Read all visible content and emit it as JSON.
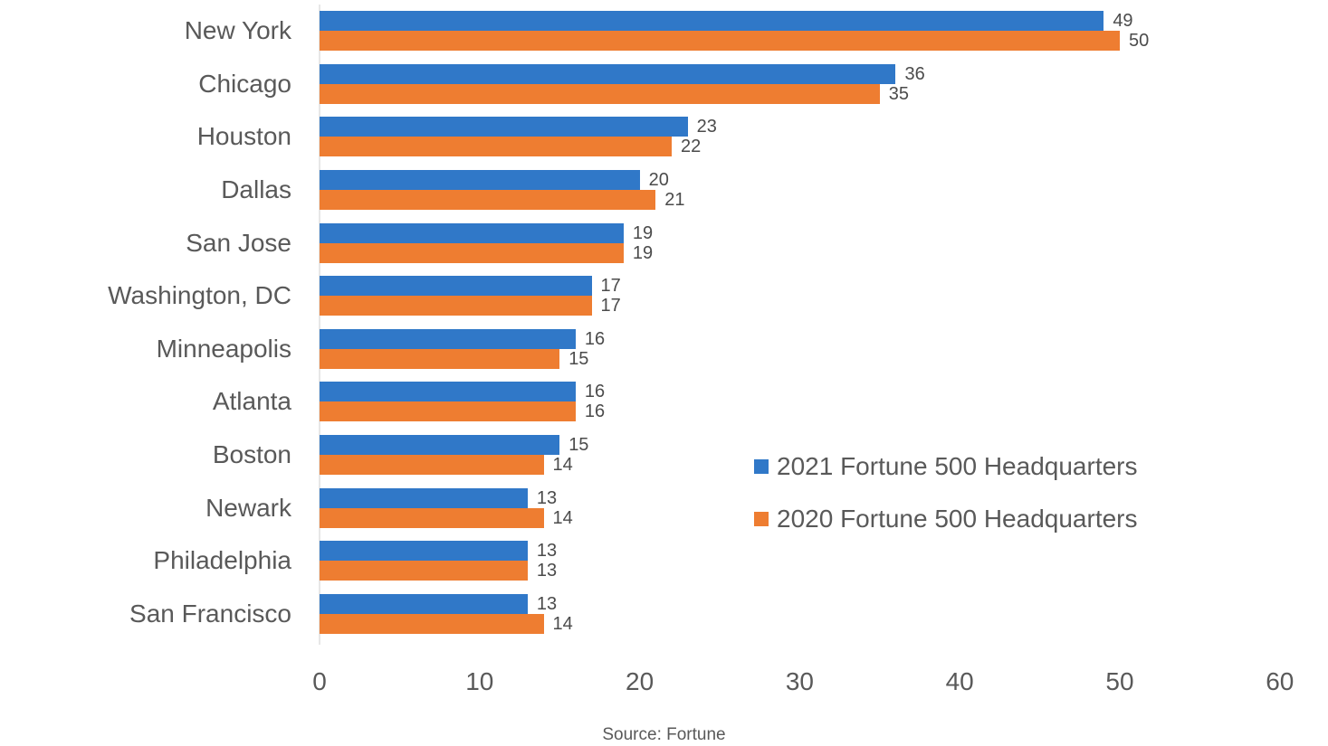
{
  "chart_data": {
    "type": "bar",
    "orientation": "horizontal",
    "title": "",
    "xlabel": "",
    "ylabel": "",
    "categories": [
      "New York",
      "Chicago",
      "Houston",
      "Dallas",
      "San Jose",
      "Washington, DC",
      "Minneapolis",
      "Atlanta",
      "Boston",
      "Newark",
      "Philadelphia",
      "San Francisco"
    ],
    "series": [
      {
        "name": "2021 Fortune 500 Headquarters",
        "color": "#3078c8",
        "values": [
          49,
          36,
          23,
          20,
          19,
          17,
          16,
          16,
          15,
          13,
          13,
          13
        ]
      },
      {
        "name": "2020 Fortune 500 Headquarters",
        "color": "#ee7d31",
        "values": [
          50,
          35,
          22,
          21,
          19,
          17,
          15,
          16,
          14,
          14,
          13,
          14
        ]
      }
    ],
    "x_ticks": [
      0,
      10,
      20,
      30,
      40,
      50,
      60
    ],
    "xlim": [
      0,
      60
    ],
    "grid": false,
    "data_labels": true,
    "legend_position": "center-right",
    "source": "Source: Fortune"
  },
  "colors": {
    "series_2021": "#3078c8",
    "series_2020": "#ee7d31",
    "axis_line": "#e7e7e7",
    "text": "#595959",
    "value_text": "#4b4b4b",
    "background": "#ffffff"
  }
}
